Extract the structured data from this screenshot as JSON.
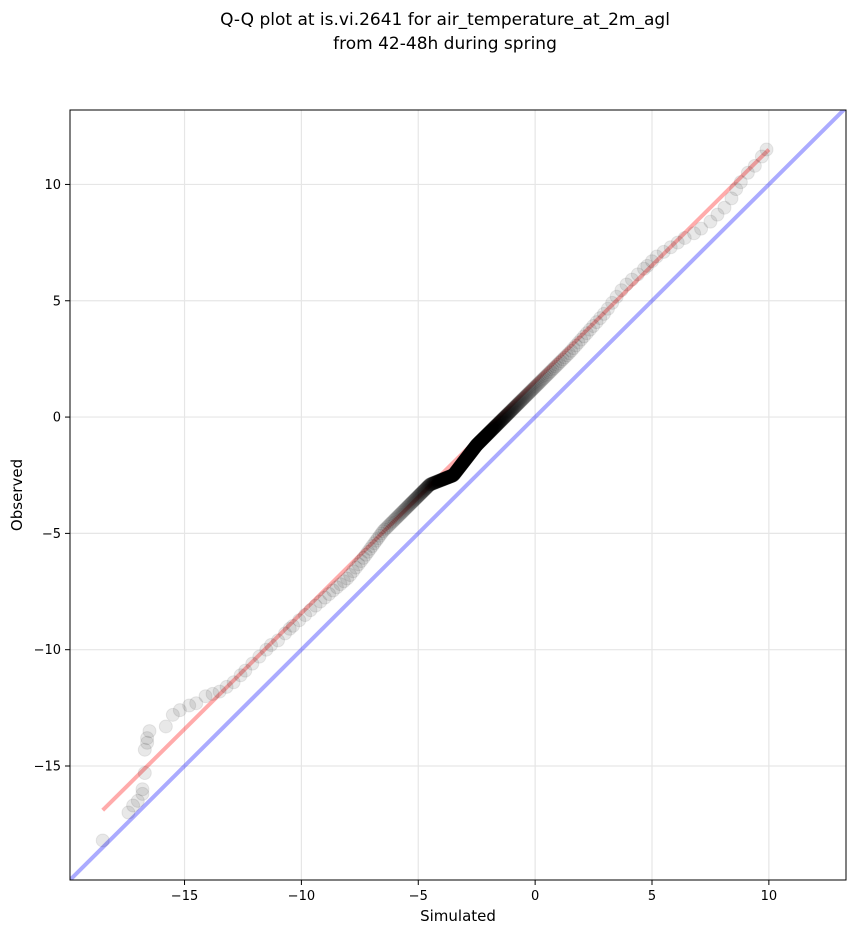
{
  "chart_data": {
    "type": "scatter",
    "title_line1": "Q-Q plot at is.vi.2641 for air_temperature_at_2m_agl",
    "title_line2": "from 42-48h during spring",
    "xlabel": "Simulated",
    "ylabel": "Observed",
    "xlim": [
      -19.9,
      13.3
    ],
    "ylim": [
      -19.9,
      13.2
    ],
    "xticks": [
      -15,
      -10,
      -5,
      0,
      5,
      10
    ],
    "yticks": [
      -15,
      -10,
      -5,
      0,
      5,
      10
    ],
    "xtick_labels": [
      "−15",
      "−10",
      "−5",
      "0",
      "5",
      "10"
    ],
    "ytick_labels": [
      "−15",
      "−10",
      "−5",
      "0",
      "5",
      "10"
    ],
    "grid": true,
    "colors": {
      "points": "#000000",
      "fit_line": "#ff0000",
      "identity_line": "#0000ff"
    },
    "identity_line": {
      "from": [
        -19.9,
        -19.9
      ],
      "to": [
        13.3,
        13.3
      ]
    },
    "fit_line": {
      "from": [
        -18.5,
        -16.9
      ],
      "to": [
        10.0,
        11.5
      ]
    },
    "tail_points": [
      [
        -18.5,
        -18.2
      ],
      [
        -17.4,
        -17.0
      ],
      [
        -17.2,
        -16.7
      ],
      [
        -17.0,
        -16.5
      ],
      [
        -16.8,
        -16.2
      ],
      [
        -16.8,
        -16.0
      ],
      [
        -16.7,
        -15.3
      ],
      [
        -16.7,
        -14.3
      ],
      [
        -16.6,
        -14.0
      ],
      [
        -16.6,
        -13.8
      ],
      [
        -16.5,
        -13.5
      ],
      [
        -15.8,
        -13.3
      ],
      [
        -15.5,
        -12.8
      ],
      [
        -15.2,
        -12.6
      ],
      [
        -14.8,
        -12.4
      ],
      [
        -14.5,
        -12.3
      ],
      [
        -14.1,
        -12.0
      ],
      [
        -13.8,
        -11.9
      ],
      [
        -13.5,
        -11.8
      ],
      [
        -13.2,
        -11.6
      ],
      [
        -12.9,
        -11.4
      ],
      [
        -12.6,
        -11.1
      ],
      [
        -12.4,
        -10.9
      ],
      [
        -12.1,
        -10.6
      ],
      [
        -11.8,
        -10.3
      ],
      [
        -11.5,
        -10.0
      ],
      [
        -11.3,
        -9.8
      ],
      [
        -11.0,
        -9.6
      ],
      [
        -10.7,
        -9.3
      ],
      [
        -10.5,
        -9.1
      ],
      [
        4.8,
        6.5
      ],
      [
        5.0,
        6.7
      ],
      [
        5.2,
        6.9
      ],
      [
        5.5,
        7.1
      ],
      [
        5.8,
        7.3
      ],
      [
        6.1,
        7.5
      ],
      [
        6.4,
        7.7
      ],
      [
        6.8,
        7.9
      ],
      [
        7.1,
        8.1
      ],
      [
        7.5,
        8.4
      ],
      [
        7.8,
        8.7
      ],
      [
        8.1,
        9.0
      ],
      [
        8.4,
        9.4
      ],
      [
        8.6,
        9.8
      ],
      [
        8.8,
        10.1
      ],
      [
        9.1,
        10.5
      ],
      [
        9.4,
        10.8
      ],
      [
        9.7,
        11.2
      ],
      [
        9.9,
        11.5
      ]
    ],
    "dense_curve": [
      [
        -10.5,
        -9.1
      ],
      [
        -9.5,
        -8.2
      ],
      [
        -8.0,
        -6.9
      ],
      [
        -7.3,
        -6.0
      ],
      [
        -6.5,
        -4.9
      ],
      [
        -5.5,
        -3.9
      ],
      [
        -4.5,
        -2.9
      ],
      [
        -3.5,
        -2.5
      ],
      [
        -2.5,
        -1.2
      ],
      [
        -1.5,
        -0.2
      ],
      [
        0.0,
        1.3
      ],
      [
        1.5,
        2.8
      ],
      [
        3.0,
        4.5
      ],
      [
        3.8,
        5.6
      ],
      [
        4.8,
        6.5
      ]
    ],
    "dense_count": 620
  }
}
